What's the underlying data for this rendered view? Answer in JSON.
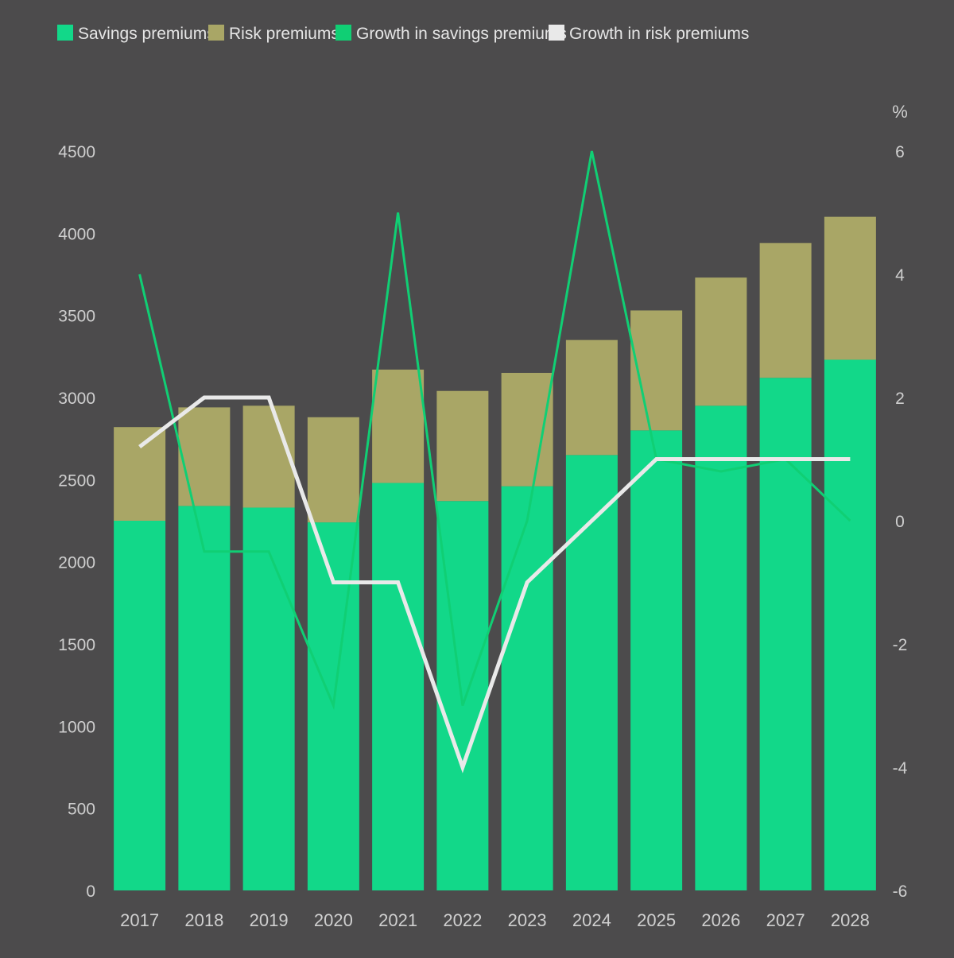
{
  "colors": {
    "background": "#4c4b4c",
    "savings": "#12d889",
    "risk": "#a9a666",
    "growth_savings": "#10cf74",
    "growth_risk": "#e9e9e9",
    "text": "#e6e6e6",
    "axis_text": "#cfcfcf"
  },
  "chart_data": {
    "type": "bar",
    "stacked": true,
    "title": "",
    "xlabel": "",
    "ylabel": "",
    "y2label": "%",
    "categories": [
      "2017",
      "2018",
      "2019",
      "2020",
      "2021",
      "2022",
      "2023",
      "2024",
      "2025",
      "2026",
      "2027",
      "2028"
    ],
    "ylim": [
      0,
      4500
    ],
    "yticks": [
      0,
      500,
      1000,
      1500,
      2000,
      2500,
      3000,
      3500,
      4000,
      4500
    ],
    "y2lim": [
      -6,
      6
    ],
    "y2ticks": [
      -6,
      -4,
      -2,
      0,
      2,
      4,
      6
    ],
    "legend": [
      {
        "label": "Savings premiums",
        "swatch": "savings"
      },
      {
        "label": "Risk premiums",
        "swatch": "risk"
      },
      {
        "label": "Growth in savings premiums",
        "swatch": "growth_savings"
      },
      {
        "label": "Growth in risk premiums",
        "swatch": "growth_risk"
      }
    ],
    "series": [
      {
        "name": "Savings premiums",
        "kind": "bar",
        "axis": "left",
        "color": "savings",
        "values": [
          2250,
          2340,
          2330,
          2240,
          2480,
          2370,
          2460,
          2650,
          2800,
          2950,
          3120,
          3230
        ]
      },
      {
        "name": "Risk premiums",
        "kind": "bar",
        "axis": "left",
        "color": "risk",
        "values": [
          570,
          600,
          620,
          640,
          690,
          670,
          690,
          700,
          730,
          780,
          820,
          870
        ]
      },
      {
        "name": "Growth in savings premiums",
        "kind": "line",
        "axis": "right",
        "color": "growth_savings",
        "values": [
          4.0,
          -0.5,
          -0.5,
          -3.0,
          5.0,
          -3.0,
          0.0,
          6.0,
          1.0,
          0.8,
          1.0,
          0.0
        ]
      },
      {
        "name": "Growth in risk premiums",
        "kind": "line",
        "axis": "right",
        "color": "growth_risk",
        "values": [
          1.2,
          2.0,
          2.0,
          -1.0,
          -1.0,
          -4.0,
          -1.0,
          0.0,
          1.0,
          1.0,
          1.0,
          1.0
        ]
      }
    ]
  }
}
